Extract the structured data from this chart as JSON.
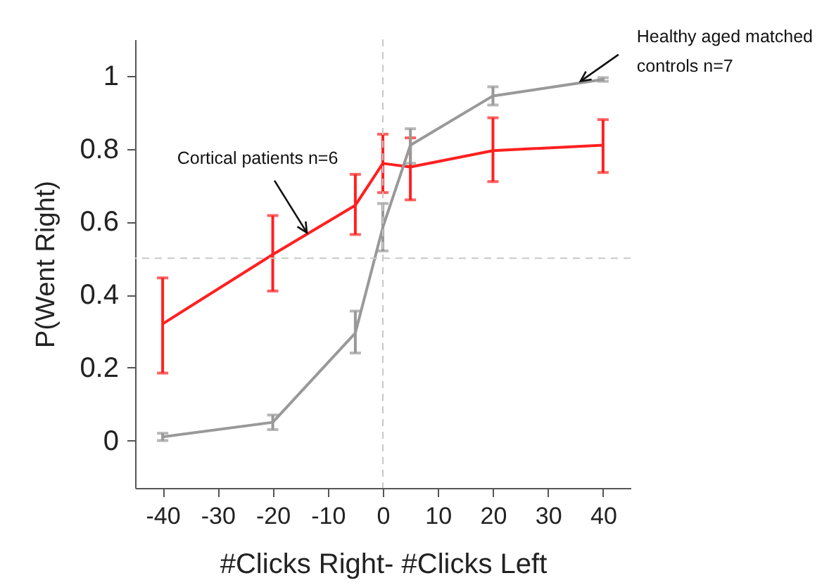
{
  "chart_data": {
    "type": "line",
    "xlabel": "#Clicks Right- #Clicks Left",
    "ylabel": "P(Went Right)",
    "x": [
      -40,
      -20,
      -5,
      0,
      5,
      20,
      40
    ],
    "series": [
      {
        "color": "#ff2020",
        "values": [
          0.32,
          0.51,
          0.645,
          0.76,
          0.75,
          0.795,
          0.81
        ],
        "errors": [
          [
            0.185,
            0.446
          ],
          [
            0.41,
            0.617
          ],
          [
            0.565,
            0.73
          ],
          [
            0.68,
            0.84
          ],
          [
            0.66,
            0.83
          ],
          [
            0.71,
            0.885
          ],
          [
            0.735,
            0.88
          ]
        ]
      },
      {
        "color": "#999999",
        "values": [
          0.01,
          0.05,
          0.295,
          0.585,
          0.81,
          0.945,
          0.99
        ],
        "errors": [
          [
            0.0,
            0.02
          ],
          [
            0.03,
            0.07
          ],
          [
            0.24,
            0.355
          ],
          [
            0.52,
            0.65
          ],
          [
            0.76,
            0.855
          ],
          [
            0.92,
            0.97
          ],
          [
            0.985,
            0.995
          ]
        ]
      }
    ],
    "xlim": [
      -45,
      45
    ],
    "xticks": [
      -40,
      -30,
      -20,
      -10,
      0,
      10,
      20,
      30,
      40
    ],
    "ylim": [
      -0.13,
      1.1
    ],
    "yticks": [
      0,
      0.2,
      0.4,
      0.6,
      0.8,
      1
    ],
    "ref_lines": [
      {
        "axis": "y",
        "value": 0.5,
        "color": "#c8c8c8",
        "line_style": "dashed"
      },
      {
        "axis": "x",
        "value": 0,
        "color": "#c8c8c8",
        "line_style": "dashed"
      }
    ],
    "annotations": [
      {
        "text": "Cortical patients n=6",
        "x": -13.8,
        "y": 0.57
      },
      {
        "text": "Healthy aged matched\ncontrols n=7",
        "x": 35.9,
        "y": 0.985
      }
    ],
    "grid": false,
    "marker": "none",
    "line_style": "solid"
  }
}
